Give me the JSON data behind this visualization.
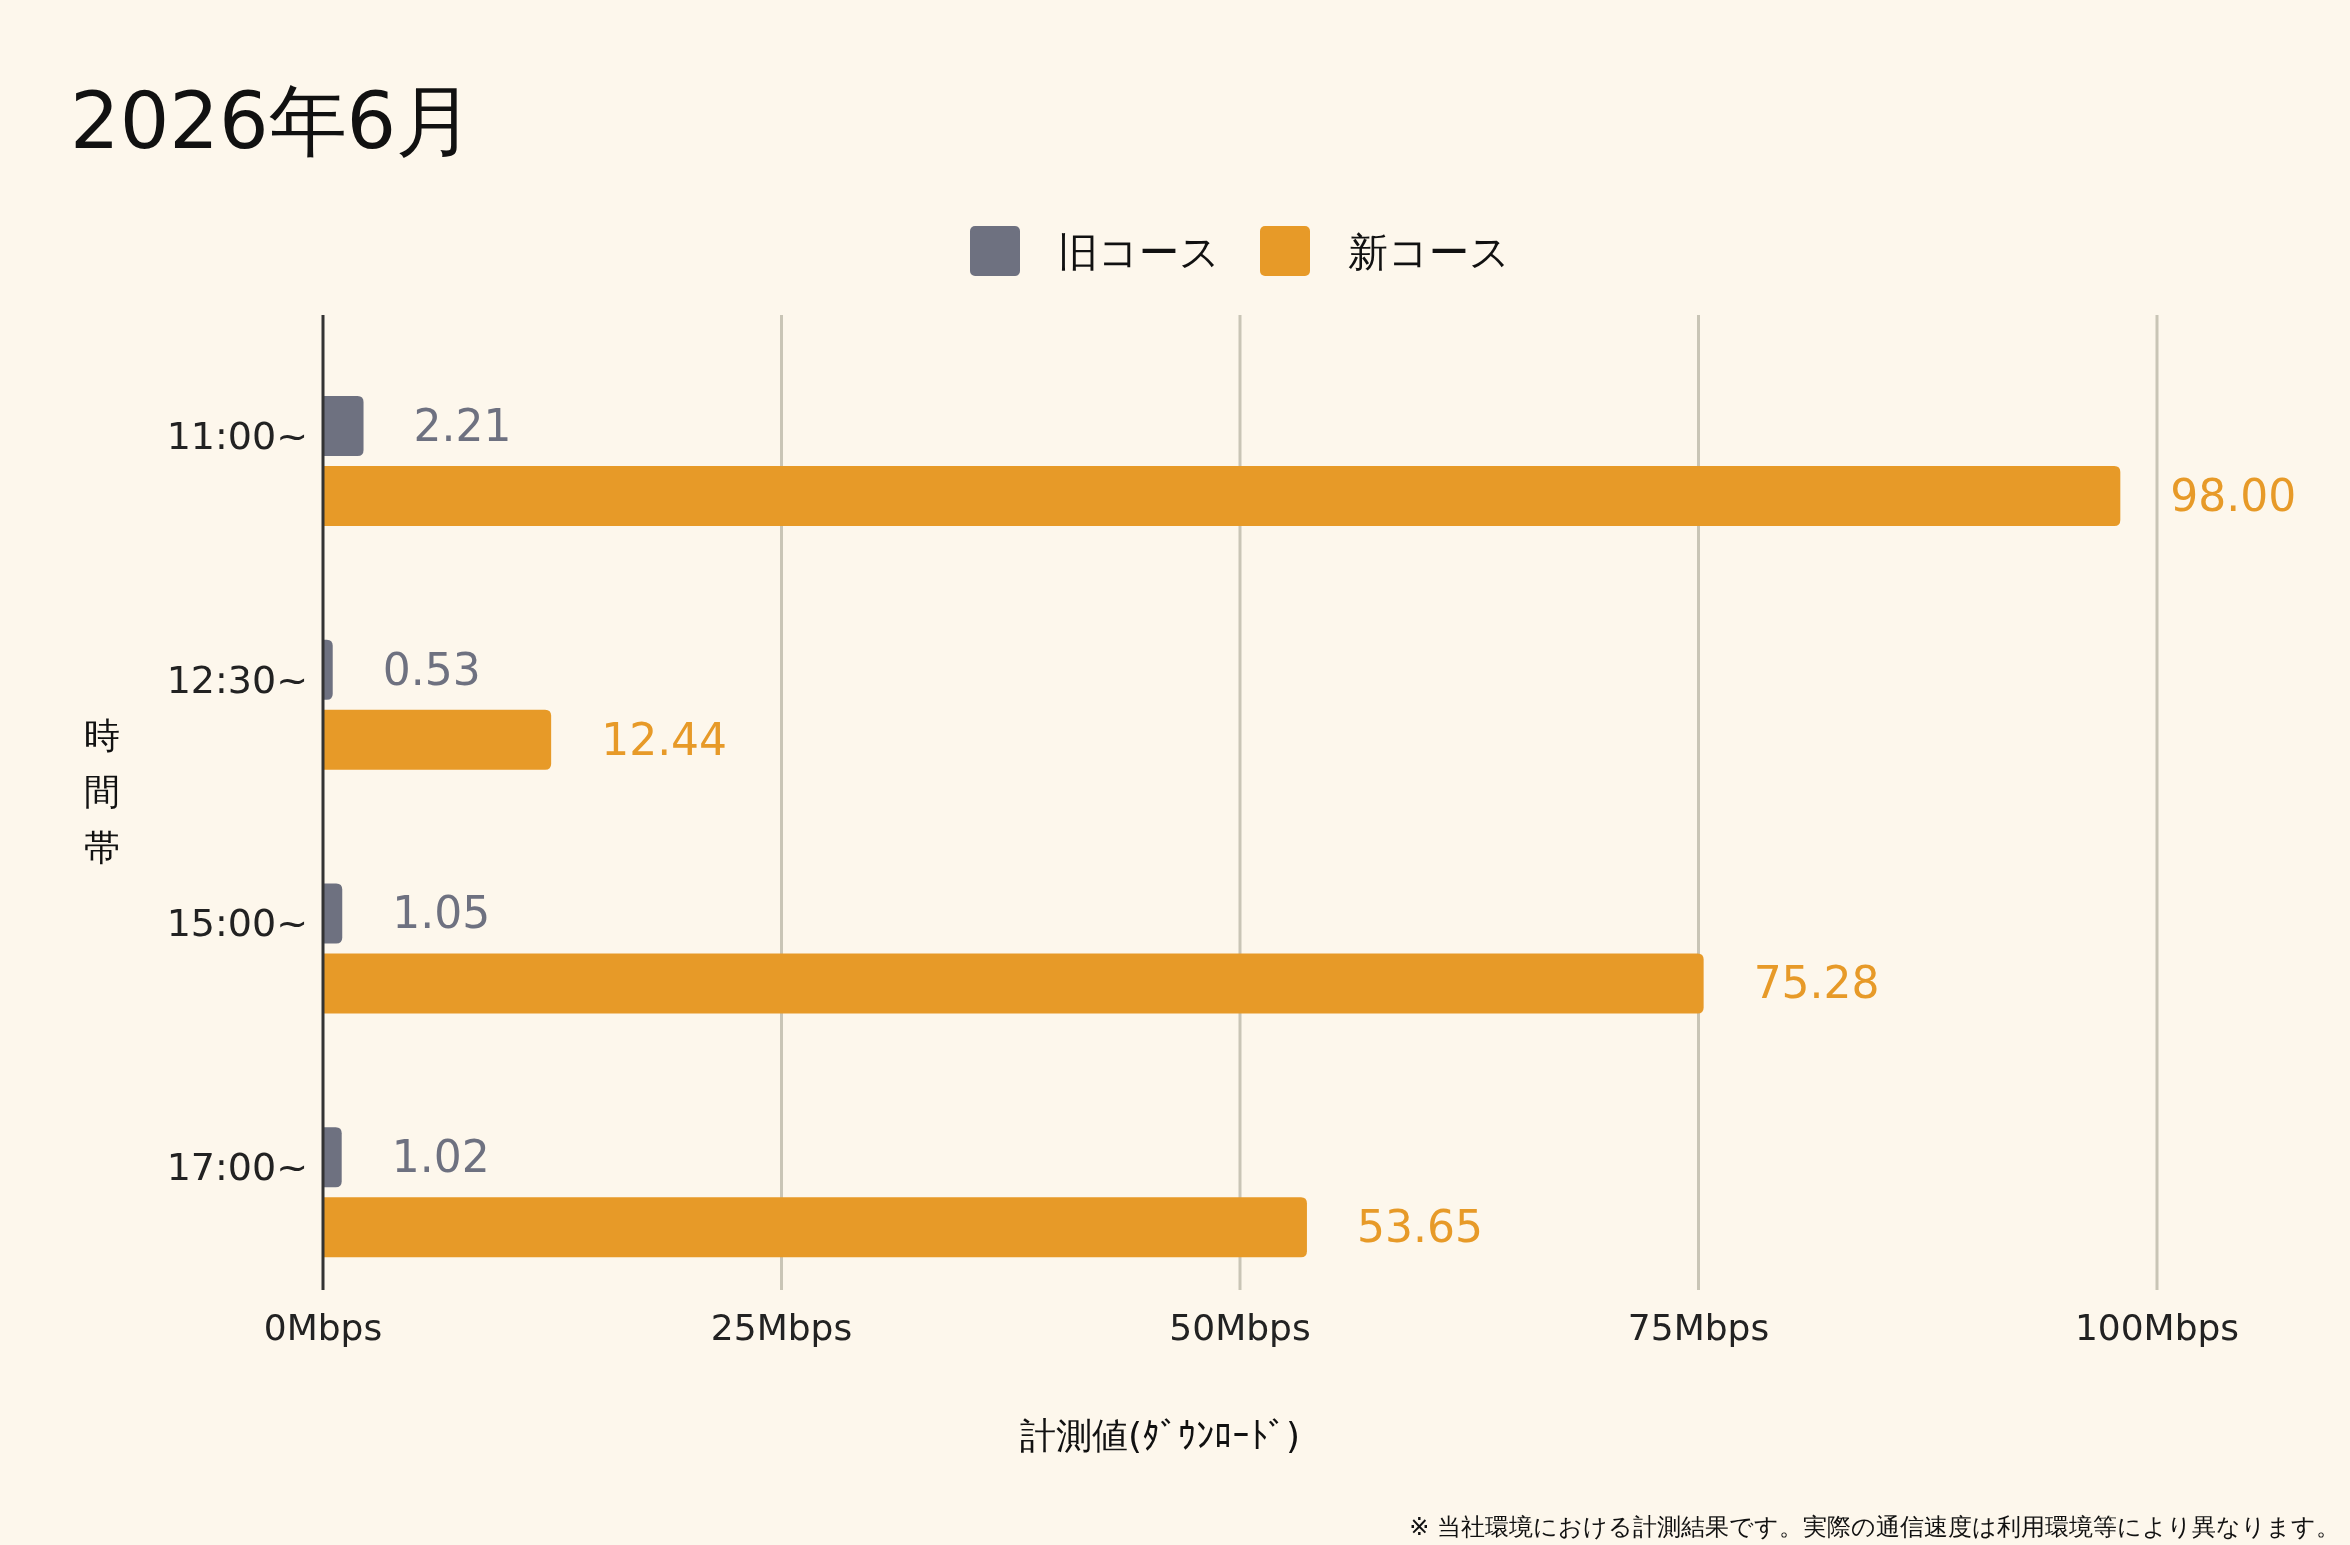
{
  "chart_data": {
    "type": "bar",
    "orientation": "horizontal",
    "title": "2026年6月",
    "xlabel": "計測値(ﾀﾞｳﾝﾛｰﾄﾞ)",
    "ylabel": "時間帯",
    "categories": [
      "11:00~",
      "12:30~",
      "15:00~",
      "17:00~"
    ],
    "series": [
      {
        "name": "旧コース",
        "color": "#6e7180",
        "values": [
          2.21,
          0.53,
          1.05,
          1.02
        ]
      },
      {
        "name": "新コース",
        "color": "#e79a28",
        "values": [
          98.0,
          12.44,
          75.28,
          53.65
        ]
      }
    ],
    "value_labels": [
      [
        "2.21",
        "0.53",
        "1.05",
        "1.02"
      ],
      [
        "98.00",
        "12.44",
        "75.28",
        "53.65"
      ]
    ],
    "xlim": [
      0,
      100
    ],
    "xticks": [
      {
        "value": 0,
        "label": "0Mbps"
      },
      {
        "value": 25,
        "label": "25Mbps"
      },
      {
        "value": 50,
        "label": "50Mbps"
      },
      {
        "value": 75,
        "label": "75Mbps"
      },
      {
        "value": 100,
        "label": "100Mbps"
      }
    ],
    "grid": "x",
    "legend": "top",
    "annotations": [
      "※ 当社環境における計測結果です。実際の通信速度は利用環境等により異なります。"
    ]
  }
}
